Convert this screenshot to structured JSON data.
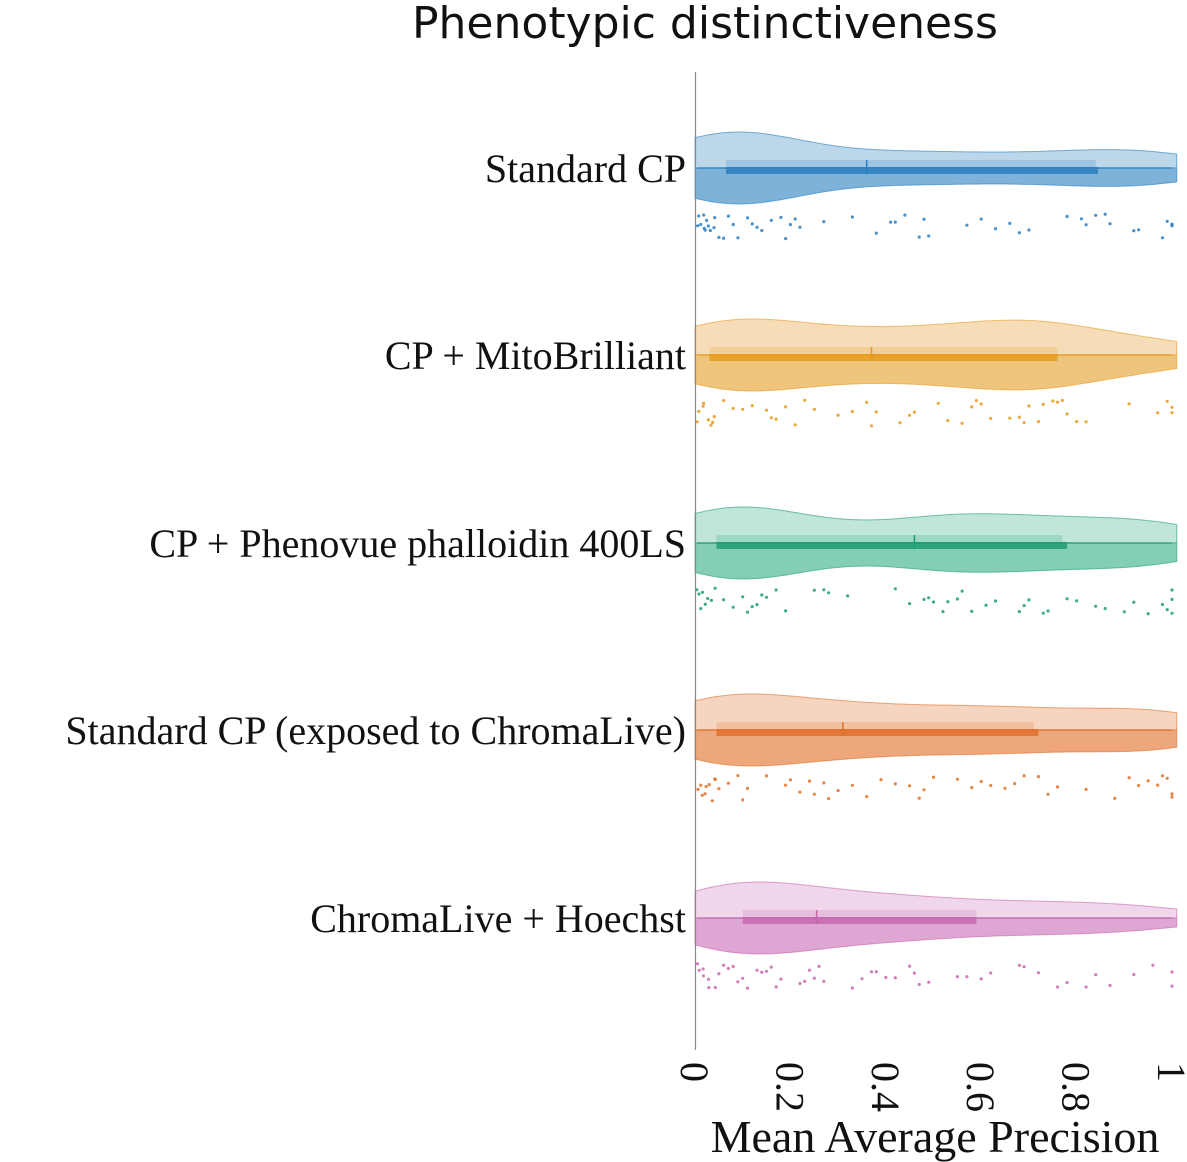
{
  "chart_data": {
    "type": "violin",
    "title": "Phenotypic distinctiveness",
    "xlabel": "Mean Average Precision",
    "ylabel": "",
    "xlim": [
      0,
      1
    ],
    "xticks": [
      "0",
      "0.2",
      "0.4",
      "0.6",
      "0.8",
      "1"
    ],
    "orientation": "horizontal",
    "grid": false,
    "legend": "none",
    "categories": [
      {
        "name": "Standard CP",
        "color": "#2a7fbf",
        "fill_color": "#bcd7ea",
        "dark_fill": "#7fb2d8",
        "q1": 0.065,
        "median": 0.36,
        "q3": 0.845,
        "mean_band": [
          0.065,
          0.84
        ],
        "points": [
          0.005,
          0.01,
          0.012,
          0.015,
          0.02,
          0.022,
          0.025,
          0.03,
          0.035,
          0.04,
          0.045,
          0.05,
          0.06,
          0.07,
          0.08,
          0.09,
          0.11,
          0.12,
          0.13,
          0.14,
          0.16,
          0.18,
          0.19,
          0.2,
          0.21,
          0.22,
          0.27,
          0.33,
          0.38,
          0.41,
          0.42,
          0.44,
          0.47,
          0.48,
          0.49,
          0.57,
          0.6,
          0.63,
          0.66,
          0.68,
          0.7,
          0.78,
          0.81,
          0.82,
          0.84,
          0.86,
          0.87,
          0.92,
          0.93,
          0.98,
          0.99,
          1.0,
          1.0,
          1.0
        ]
      },
      {
        "name": "CP + MitoBrilliant",
        "color": "#e69a1c",
        "fill_color": "#f6ddb7",
        "dark_fill": "#efc57d",
        "q1": 0.03,
        "median": 0.37,
        "q3": 0.76,
        "mean_band": [
          0.03,
          0.76
        ],
        "points": [
          0.005,
          0.01,
          0.015,
          0.02,
          0.025,
          0.03,
          0.035,
          0.04,
          0.06,
          0.08,
          0.1,
          0.12,
          0.15,
          0.16,
          0.17,
          0.19,
          0.21,
          0.23,
          0.25,
          0.3,
          0.33,
          0.36,
          0.37,
          0.38,
          0.43,
          0.45,
          0.46,
          0.51,
          0.53,
          0.56,
          0.58,
          0.59,
          0.6,
          0.62,
          0.66,
          0.68,
          0.69,
          0.7,
          0.72,
          0.73,
          0.75,
          0.76,
          0.77,
          0.78,
          0.8,
          0.82,
          0.91,
          0.97,
          0.99,
          1.0,
          1.0
        ]
      },
      {
        "name": "CP + Phenovue phalloidin 400LS",
        "color": "#1f9e73",
        "fill_color": "#bfe6d6",
        "dark_fill": "#84cfb4",
        "q1": 0.045,
        "median": 0.46,
        "q3": 0.78,
        "mean_band": [
          0.045,
          0.77
        ],
        "points": [
          0.005,
          0.01,
          0.015,
          0.02,
          0.025,
          0.03,
          0.035,
          0.04,
          0.06,
          0.08,
          0.1,
          0.11,
          0.12,
          0.13,
          0.14,
          0.15,
          0.17,
          0.19,
          0.25,
          0.27,
          0.28,
          0.32,
          0.42,
          0.45,
          0.48,
          0.49,
          0.5,
          0.52,
          0.53,
          0.55,
          0.56,
          0.58,
          0.61,
          0.63,
          0.68,
          0.69,
          0.7,
          0.73,
          0.74,
          0.78,
          0.8,
          0.84,
          0.86,
          0.9,
          0.92,
          0.95,
          0.98,
          0.99,
          1.0,
          1.0,
          1.0
        ]
      },
      {
        "name": "Standard CP (exposed to ChromaLive)",
        "color": "#e0702a",
        "fill_color": "#f5d5bf",
        "dark_fill": "#eda77a",
        "q1": 0.045,
        "median": 0.31,
        "q3": 0.72,
        "mean_band": [
          0.045,
          0.71
        ],
        "points": [
          0.005,
          0.01,
          0.015,
          0.02,
          0.025,
          0.03,
          0.035,
          0.04,
          0.045,
          0.05,
          0.07,
          0.09,
          0.1,
          0.11,
          0.15,
          0.19,
          0.2,
          0.22,
          0.24,
          0.25,
          0.27,
          0.28,
          0.3,
          0.33,
          0.36,
          0.39,
          0.42,
          0.45,
          0.47,
          0.48,
          0.5,
          0.55,
          0.58,
          0.6,
          0.62,
          0.65,
          0.67,
          0.69,
          0.72,
          0.74,
          0.76,
          0.82,
          0.88,
          0.91,
          0.93,
          0.95,
          0.97,
          0.98,
          0.99,
          1.0,
          1.0
        ]
      },
      {
        "name": "ChromaLive + Hoechst",
        "color": "#c766b0",
        "fill_color": "#efd6ea",
        "dark_fill": "#dea6d2",
        "q1": 0.1,
        "median": 0.255,
        "q3": 0.59,
        "mean_band": [
          0.1,
          0.59
        ],
        "points": [
          0.005,
          0.01,
          0.015,
          0.02,
          0.025,
          0.03,
          0.04,
          0.05,
          0.06,
          0.07,
          0.08,
          0.09,
          0.1,
          0.11,
          0.13,
          0.14,
          0.15,
          0.16,
          0.17,
          0.18,
          0.22,
          0.23,
          0.24,
          0.25,
          0.26,
          0.27,
          0.33,
          0.35,
          0.37,
          0.38,
          0.4,
          0.42,
          0.45,
          0.46,
          0.47,
          0.49,
          0.55,
          0.57,
          0.6,
          0.62,
          0.68,
          0.69,
          0.72,
          0.76,
          0.78,
          0.82,
          0.84,
          0.87,
          0.92,
          0.96,
          1.0,
          1.0
        ]
      }
    ]
  }
}
